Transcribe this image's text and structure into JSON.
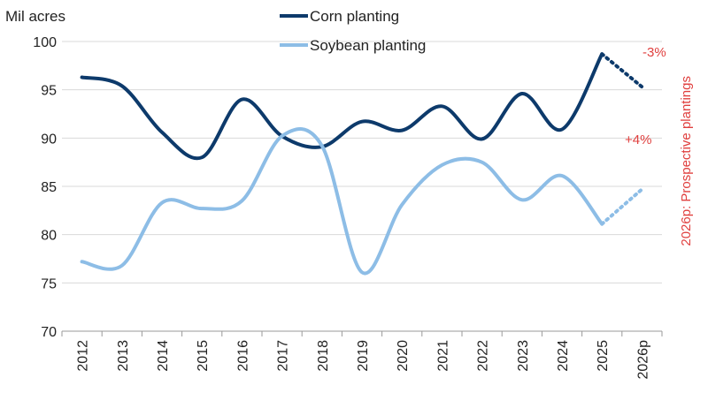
{
  "chart_data": {
    "type": "line",
    "ylabel": "Mil acres",
    "ylim": [
      70,
      100
    ],
    "yticks": [
      70,
      75,
      80,
      85,
      90,
      95,
      100
    ],
    "categories": [
      "2012",
      "2013",
      "2014",
      "2015",
      "2016",
      "2017",
      "2018",
      "2019",
      "2020",
      "2021",
      "2022",
      "2023",
      "2024",
      "2025",
      "2026p"
    ],
    "series": [
      {
        "name": "Corn planting",
        "color": "#0d3a6b",
        "values": [
          96.3,
          95.4,
          90.6,
          88.0,
          94.0,
          90.2,
          89.1,
          91.7,
          90.8,
          93.3,
          89.9,
          94.6,
          90.9,
          98.7,
          95.3
        ],
        "projected_from_index": 13
      },
      {
        "name": "Soybean planting",
        "color": "#8dbde6",
        "values": [
          77.2,
          76.8,
          83.3,
          82.7,
          83.5,
          90.2,
          89.2,
          76.1,
          83.1,
          87.2,
          87.5,
          83.6,
          86.1,
          81.1,
          84.7
        ],
        "projected_from_index": 13
      }
    ],
    "annotations": [
      {
        "text": "-3%",
        "series": "Corn planting"
      },
      {
        "text": "+4%",
        "series": "Soybean planting"
      }
    ],
    "side_label": "2026p: Prospective plantings",
    "annotation_color": "#e0403f",
    "grid": "horizontal",
    "legend": "top-center"
  }
}
